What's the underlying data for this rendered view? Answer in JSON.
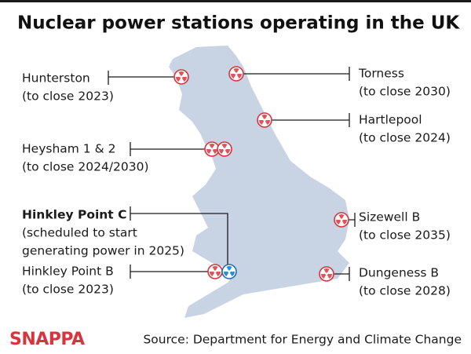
{
  "title": "Nuclear power stations operating in the UK",
  "stations": [
    {
      "name": "Hunterston",
      "note_lines": [
        "(to close 2023)"
      ]
    },
    {
      "name": "Torness",
      "note_lines": [
        "(to close 2030)"
      ]
    },
    {
      "name": "Hartlepool",
      "note_lines": [
        "(to close 2024)"
      ]
    },
    {
      "name": "Heysham 1 & 2",
      "note_lines": [
        "(to close 2024/2030)"
      ]
    },
    {
      "name": "Hinkley Point C",
      "note_lines": [
        "(scheduled to start",
        "generating power in 2025)"
      ]
    },
    {
      "name": "Hinkley Point B",
      "note_lines": [
        "(to close 2023)"
      ]
    },
    {
      "name": "Sizewell B",
      "note_lines": [
        "(to close 2035)"
      ]
    },
    {
      "name": "Dungeness B",
      "note_lines": [
        "(to close 2028)"
      ]
    }
  ],
  "footer": {
    "logo": "SNAPPA",
    "source": "Source: Department for Energy and Climate Change"
  }
}
